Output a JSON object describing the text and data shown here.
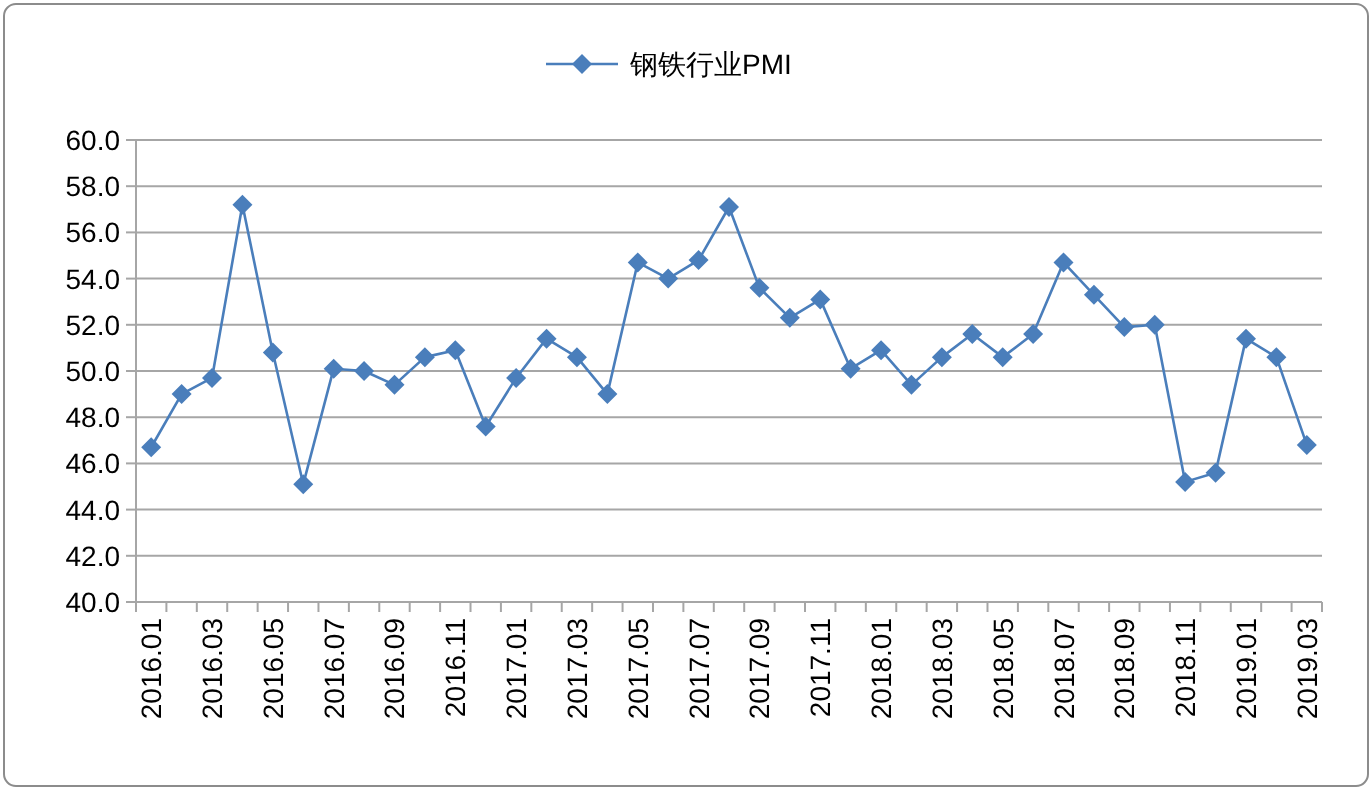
{
  "chart_data": {
    "type": "line",
    "categories": [
      "2016.01",
      null,
      "2016.03",
      null,
      "2016.05",
      null,
      "2016.07",
      null,
      "2016.09",
      null,
      "2016.11",
      null,
      "2017.01",
      null,
      "2017.03",
      null,
      "2017.05",
      null,
      "2017.07",
      null,
      "2017.09",
      null,
      "2017.11",
      null,
      "2018.01",
      null,
      "2018.03",
      null,
      "2018.05",
      null,
      "2018.07",
      null,
      "2018.09",
      null,
      "2018.11",
      null,
      "2019.01",
      null,
      "2019.03"
    ],
    "series": [
      {
        "name": "钢铁行业PMI",
        "color": "#4a7ebb",
        "values": [
          46.7,
          49.0,
          49.7,
          57.2,
          50.8,
          45.1,
          50.1,
          50.0,
          49.4,
          50.6,
          50.9,
          47.6,
          49.7,
          51.4,
          50.6,
          49.0,
          54.7,
          54.0,
          54.8,
          57.1,
          53.6,
          52.3,
          53.1,
          50.1,
          50.9,
          49.4,
          50.6,
          51.6,
          50.6,
          51.6,
          54.7,
          53.3,
          51.9,
          52.0,
          45.2,
          45.6,
          51.4,
          50.6,
          46.8
        ]
      }
    ],
    "ylim": [
      40,
      60
    ],
    "yticks": [
      {
        "value": 40,
        "label": "40.0"
      },
      {
        "value": 42,
        "label": "42.0"
      },
      {
        "value": 44,
        "label": "44.0"
      },
      {
        "value": 46,
        "label": "46.0"
      },
      {
        "value": 48,
        "label": "48.0"
      },
      {
        "value": 50,
        "label": "50.0"
      },
      {
        "value": 52,
        "label": "52.0"
      },
      {
        "value": 54,
        "label": "54.0"
      },
      {
        "value": 56,
        "label": "56.0"
      },
      {
        "value": 58,
        "label": "58.0"
      },
      {
        "value": 60,
        "label": "60.0"
      }
    ],
    "grid": "y",
    "legend": "top",
    "marker": "diamond",
    "line_style": "solid"
  }
}
